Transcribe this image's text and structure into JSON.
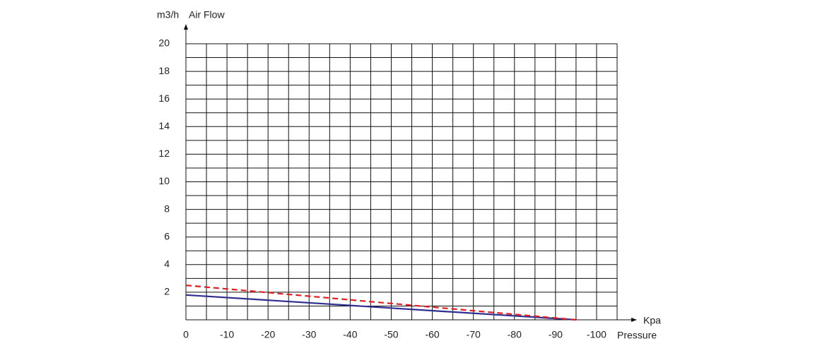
{
  "chart_data": {
    "type": "line",
    "y_unit": "m3/h",
    "y_label": "Air Flow",
    "x_unit": "Kpa",
    "x_label": "Pressure",
    "xlim": [
      0,
      -105
    ],
    "xticks": [
      0,
      -10,
      -20,
      -30,
      -40,
      -50,
      -60,
      -70,
      -80,
      -90,
      -100
    ],
    "ylim": [
      0,
      20
    ],
    "yticks": [
      2,
      4,
      6,
      8,
      10,
      12,
      14,
      16,
      18,
      20
    ],
    "grid": true,
    "series": [
      {
        "color": "#2e2e8f",
        "dashed": false,
        "x": [
          0,
          -95
        ],
        "values": [
          1.8,
          0
        ]
      },
      {
        "color": "#e02020",
        "dashed": true,
        "x": [
          0,
          -95
        ],
        "values": [
          2.5,
          0
        ]
      }
    ]
  }
}
